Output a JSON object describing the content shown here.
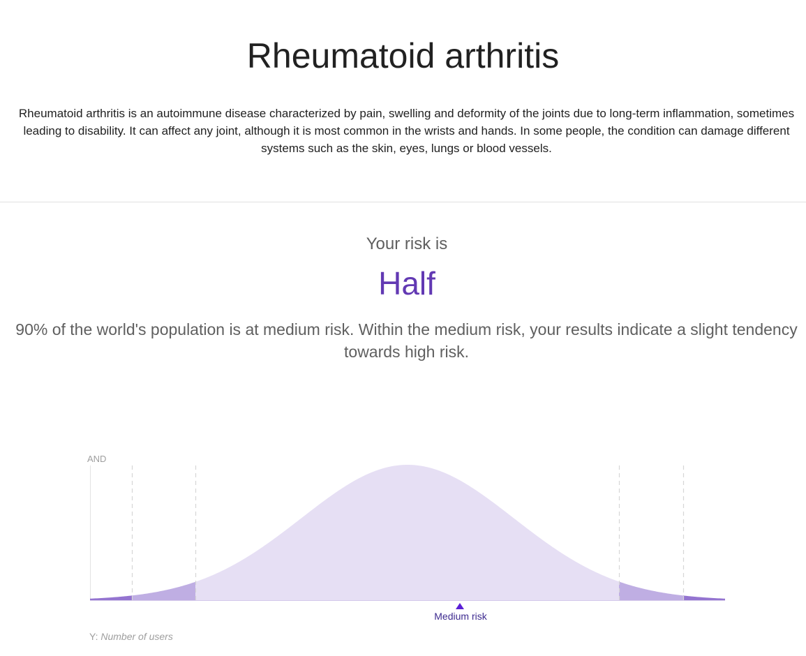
{
  "header": {
    "title": "Rheumatoid arthritis",
    "description": "Rheumatoid arthritis is an autoimmune disease characterized by pain, swelling and deformity of the joints due to long-term inflammation, sometimes leading to disability. It can affect any joint, although it is most common in the wrists and hands. In some people, the condition can damage different systems such as the skin, eyes, lungs or blood vessels."
  },
  "risk": {
    "intro": "Your risk is",
    "level": "Half",
    "summary": "90% of the world's population is at medium risk. Within the medium risk, your results indicate a slight tendency towards high risk."
  },
  "chart": {
    "y_top_label": "AND",
    "marker_label": "Medium risk",
    "y_caption_key": "Y:",
    "y_caption_name": "Number of users"
  },
  "colors": {
    "accent": "#6239b3",
    "bell_fill": "#e6dff4",
    "tail_mid_fill": "#bfaee3",
    "tail_outer_fill": "#9474d0",
    "marker": "#5b1fd6"
  }
}
